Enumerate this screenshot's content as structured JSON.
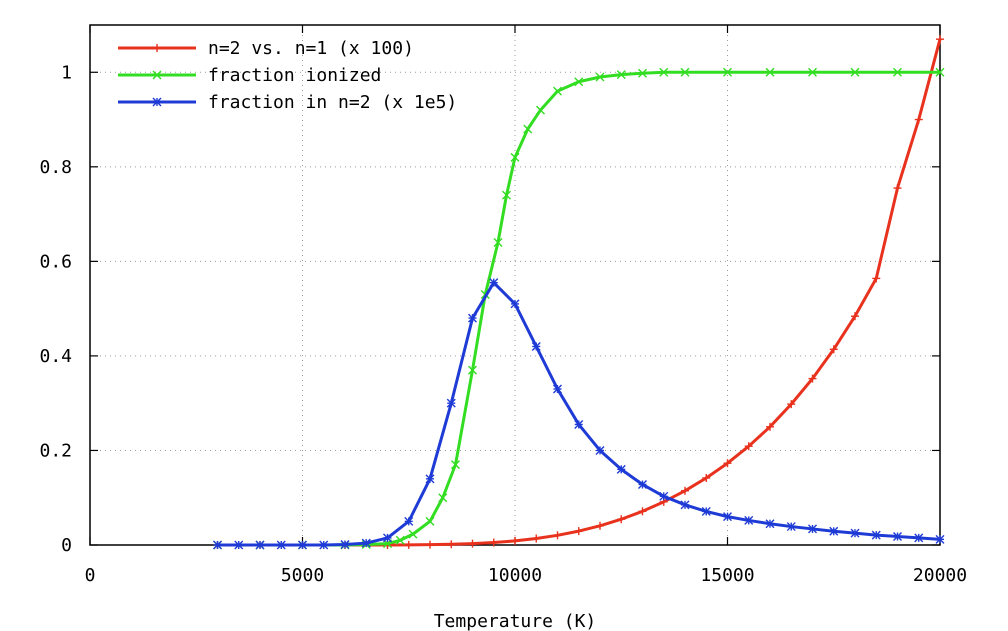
{
  "chart_data": {
    "type": "line",
    "title": "",
    "xlabel": "Temperature (K)",
    "ylabel": "",
    "xlim": [
      0,
      20000
    ],
    "ylim": [
      0,
      1.1
    ],
    "x_ticks": [
      {
        "value": 0,
        "label": "0"
      },
      {
        "value": 5000,
        "label": "5000"
      },
      {
        "value": 10000,
        "label": "10000"
      },
      {
        "value": 15000,
        "label": "15000"
      },
      {
        "value": 20000,
        "label": "20000"
      }
    ],
    "y_ticks": [
      {
        "value": 0,
        "label": "0"
      },
      {
        "value": 0.2,
        "label": "0.2"
      },
      {
        "value": 0.4,
        "label": "0.4"
      },
      {
        "value": 0.6,
        "label": "0.6"
      },
      {
        "value": 0.8,
        "label": "0.8"
      },
      {
        "value": 1,
        "label": "1"
      }
    ],
    "grid": true,
    "legend_position": "top-left",
    "series": [
      {
        "name": "n=2 vs. n=1 (x 100)",
        "color": "#e8321e",
        "marker": "plus",
        "x": [
          3000,
          4000,
          5000,
          6000,
          7000,
          7500,
          8000,
          8500,
          9000,
          9500,
          10000,
          10500,
          11000,
          11500,
          12000,
          12500,
          13000,
          13500,
          14000,
          14500,
          15000,
          15500,
          16000,
          16500,
          17000,
          17500,
          18000,
          18500,
          19000,
          19500,
          20000
        ],
        "y": [
          0,
          0,
          0,
          0,
          0,
          0.0003,
          0.0007,
          0.0015,
          0.0029,
          0.0052,
          0.0087,
          0.0137,
          0.0205,
          0.0294,
          0.0406,
          0.0545,
          0.0713,
          0.0913,
          0.1147,
          0.1418,
          0.173,
          0.209,
          0.25,
          0.298,
          0.352,
          0.414,
          0.484,
          0.564,
          0.755,
          0.9,
          1.07
        ]
      },
      {
        "name": "fraction ionized",
        "color": "#33dd22",
        "marker": "x",
        "x": [
          3000,
          4000,
          5000,
          6000,
          6500,
          7000,
          7300,
          7600,
          8000,
          8300,
          8600,
          9000,
          9300,
          9600,
          9800,
          10000,
          10300,
          10600,
          11000,
          11500,
          12000,
          12500,
          13000,
          13500,
          14000,
          15000,
          16000,
          17000,
          18000,
          19000,
          20000
        ],
        "y": [
          0,
          0,
          0,
          0,
          0.001,
          0.003,
          0.01,
          0.023,
          0.05,
          0.1,
          0.17,
          0.37,
          0.53,
          0.64,
          0.74,
          0.82,
          0.88,
          0.92,
          0.96,
          0.98,
          0.99,
          0.995,
          0.998,
          1.0,
          1.0,
          1.0,
          1.0,
          1.0,
          1.0,
          1.0,
          1.0
        ]
      },
      {
        "name": "fraction in n=2 (x 1e5)",
        "color": "#1f3bd6",
        "marker": "star",
        "x": [
          3000,
          3500,
          4000,
          4500,
          5000,
          5500,
          6000,
          6500,
          7000,
          7500,
          8000,
          8500,
          9000,
          9500,
          10000,
          10500,
          11000,
          11500,
          12000,
          12500,
          13000,
          13500,
          14000,
          14500,
          15000,
          15500,
          16000,
          16500,
          17000,
          17500,
          18000,
          18500,
          19000,
          19500,
          20000
        ],
        "y": [
          0,
          0,
          0,
          0,
          0,
          0,
          0.001,
          0.004,
          0.015,
          0.05,
          0.14,
          0.3,
          0.48,
          0.555,
          0.51,
          0.42,
          0.33,
          0.255,
          0.2,
          0.16,
          0.128,
          0.103,
          0.085,
          0.071,
          0.06,
          0.052,
          0.045,
          0.039,
          0.034,
          0.029,
          0.025,
          0.021,
          0.018,
          0.015,
          0.012
        ]
      }
    ]
  }
}
